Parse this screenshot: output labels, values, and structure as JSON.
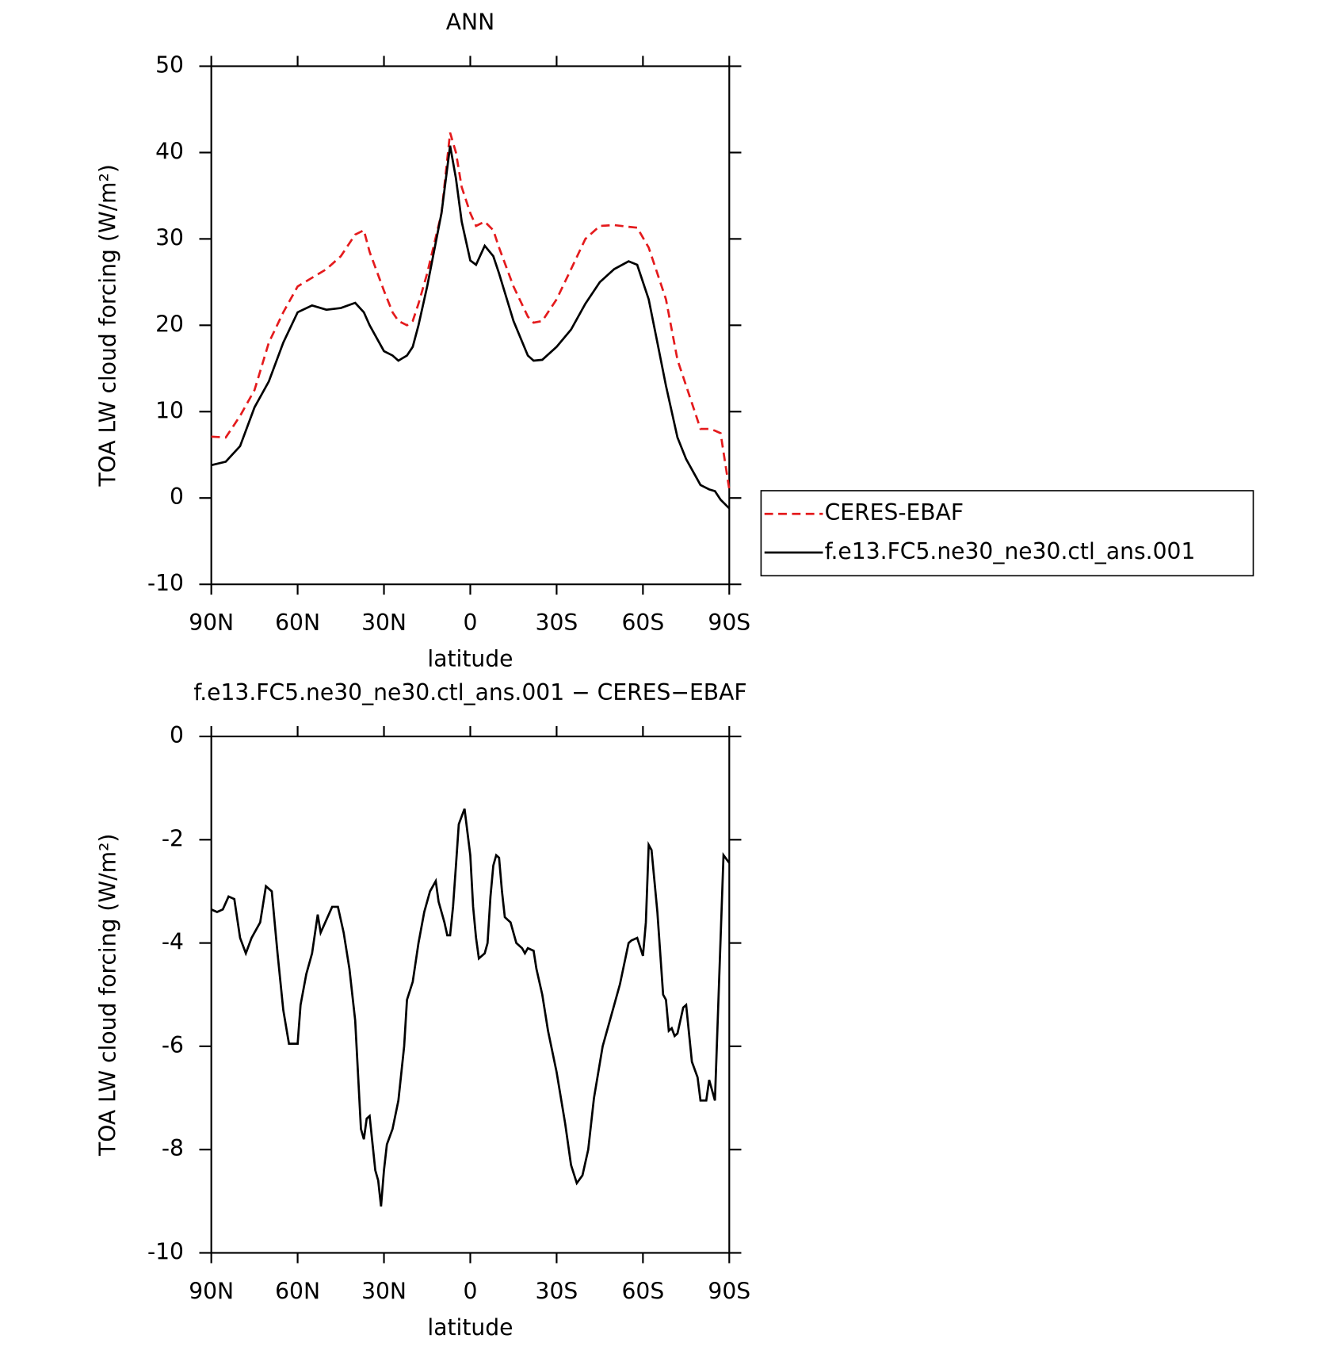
{
  "chart_data": [
    {
      "type": "line",
      "title": "ANN",
      "xlabel": "latitude",
      "ylabel": "TOA LW cloud forcing (W/m²)",
      "xlim": [
        90,
        -90
      ],
      "xticks": [
        {
          "value": 90,
          "label": "90N"
        },
        {
          "value": 60,
          "label": "60N"
        },
        {
          "value": 30,
          "label": "30N"
        },
        0,
        {
          "value": -30,
          "label": "30S"
        },
        {
          "value": -60,
          "label": "60S"
        },
        {
          "value": -90,
          "label": "90S"
        }
      ],
      "ylim": [
        -10,
        50
      ],
      "yticks": [
        -10,
        0,
        10,
        20,
        30,
        40,
        50
      ],
      "legend": "outside-right",
      "x": [
        90,
        85,
        80,
        75,
        70,
        65,
        60,
        55,
        50,
        45,
        40,
        37,
        35,
        30,
        27,
        25,
        22,
        20,
        18,
        15,
        10,
        7,
        5,
        3,
        0,
        -2,
        -5,
        -8,
        -10,
        -15,
        -20,
        -22,
        -25,
        -30,
        -35,
        -40,
        -45,
        -50,
        -55,
        -58,
        -62,
        -65,
        -68,
        -72,
        -75,
        -80,
        -83,
        -85,
        -87,
        -90
      ],
      "series": [
        {
          "name": "CERES-EBAF",
          "color": "#e41a1c",
          "dashed": true,
          "values": [
            7.1,
            7,
            9.5,
            12.5,
            18,
            21.5,
            24.5,
            25.5,
            26.5,
            28,
            30.5,
            31,
            28.5,
            24,
            21.5,
            20.5,
            20,
            20.5,
            22.5,
            26,
            33,
            42.3,
            40,
            36,
            33,
            31.5,
            32,
            31,
            29,
            24.5,
            21,
            20.3,
            20.5,
            23,
            26.5,
            30,
            31.5,
            31.6,
            31.4,
            31.3,
            29,
            26,
            23,
            16,
            13,
            8,
            8,
            7.8,
            7.5,
            1
          ]
        },
        {
          "name": "f.e13.FC5.ne30_ne30.ctl_ans.001",
          "color": "#000000",
          "dashed": false,
          "values": [
            3.8,
            4.2,
            6,
            10.5,
            13.5,
            18,
            21.5,
            22.3,
            21.8,
            22,
            22.6,
            21.5,
            20,
            17,
            16.5,
            15.9,
            16.5,
            17.5,
            20,
            24.5,
            33,
            40.8,
            37,
            32,
            27.5,
            27,
            29.2,
            28,
            26,
            20.5,
            16.5,
            15.9,
            16,
            17.5,
            19.5,
            22.5,
            25,
            26.5,
            27.4,
            27,
            23,
            18,
            13,
            7,
            4.5,
            1.5,
            1,
            0.8,
            -0.2,
            -1.2
          ]
        }
      ]
    },
    {
      "type": "line",
      "title": "f.e13.FC5.ne30_ne30.ctl_ans.001 − CERES−EBAF",
      "xlabel": "latitude",
      "ylabel": "TOA LW cloud forcing (W/m²)",
      "xlim": [
        90,
        -90
      ],
      "xticks": [
        {
          "value": 90,
          "label": "90N"
        },
        {
          "value": 60,
          "label": "60N"
        },
        {
          "value": 30,
          "label": "30N"
        },
        0,
        {
          "value": -30,
          "label": "30S"
        },
        {
          "value": -60,
          "label": "60S"
        },
        {
          "value": -90,
          "label": "90S"
        }
      ],
      "ylim": [
        -10,
        0
      ],
      "yticks": [
        -10,
        -8,
        -6,
        -4,
        -2,
        0
      ],
      "x": [
        90,
        88,
        86,
        84,
        82,
        80,
        78,
        76,
        73,
        71,
        69,
        67,
        65,
        63,
        60,
        59,
        57,
        55,
        53,
        52,
        50,
        48,
        46,
        44,
        42,
        40,
        38,
        37,
        36,
        35,
        33,
        32,
        31,
        30,
        29,
        27,
        25,
        23,
        22,
        20,
        18,
        16,
        14,
        12,
        11,
        9,
        8,
        7,
        6,
        5,
        4,
        2,
        0,
        -1,
        -2,
        -3,
        -5,
        -6,
        -7,
        -8,
        -9,
        -10,
        -11,
        -12,
        -14,
        -16,
        -18,
        -19,
        -20,
        -22,
        -23,
        -25,
        -27,
        -30,
        -33,
        -35,
        -37,
        -39,
        -41,
        -43,
        -46,
        -49,
        -52,
        -55,
        -56,
        -58,
        -60,
        -61,
        -62,
        -63,
        -65,
        -67,
        -68,
        -69,
        -70,
        -71,
        -72,
        -74,
        -75,
        -77,
        -79,
        -80,
        -82,
        -83,
        -85,
        -88,
        -90
      ],
      "series": [
        {
          "name": "f.e13.FC5.ne30_ne30.ctl_ans.001 − CERES−EBAF",
          "color": "#000000",
          "dashed": false,
          "values": [
            -3.35,
            -3.4,
            -3.35,
            -3.1,
            -3.15,
            -3.9,
            -4.2,
            -3.9,
            -3.6,
            -2.9,
            -3.0,
            -4.2,
            -5.3,
            -5.95,
            -5.95,
            -5.2,
            -4.6,
            -4.2,
            -3.45,
            -3.8,
            -3.55,
            -3.3,
            -3.3,
            -3.8,
            -4.5,
            -5.5,
            -7.6,
            -7.8,
            -7.4,
            -7.35,
            -8.4,
            -8.6,
            -9.1,
            -8.4,
            -7.9,
            -7.6,
            -7.05,
            -6.0,
            -5.1,
            -4.75,
            -4.0,
            -3.4,
            -3.0,
            -2.8,
            -3.2,
            -3.6,
            -3.85,
            -3.85,
            -3.3,
            -2.5,
            -1.7,
            -1.4,
            -2.3,
            -3.3,
            -3.9,
            -4.3,
            -4.2,
            -4.0,
            -3.1,
            -2.5,
            -2.3,
            -2.35,
            -3.0,
            -3.5,
            -3.6,
            -4.0,
            -4.1,
            -4.2,
            -4.1,
            -4.15,
            -4.5,
            -5.0,
            -5.7,
            -6.5,
            -7.5,
            -8.3,
            -8.65,
            -8.5,
            -8.0,
            -7.0,
            -6.0,
            -5.4,
            -4.8,
            -4.0,
            -3.95,
            -3.9,
            -4.25,
            -3.6,
            -2.1,
            -2.2,
            -3.4,
            -5.0,
            -5.1,
            -5.7,
            -5.65,
            -5.8,
            -5.75,
            -5.25,
            -5.2,
            -6.3,
            -6.6,
            -7.05,
            -7.05,
            -6.65,
            -7.05,
            -2.3,
            -2.45
          ]
        }
      ]
    }
  ]
}
